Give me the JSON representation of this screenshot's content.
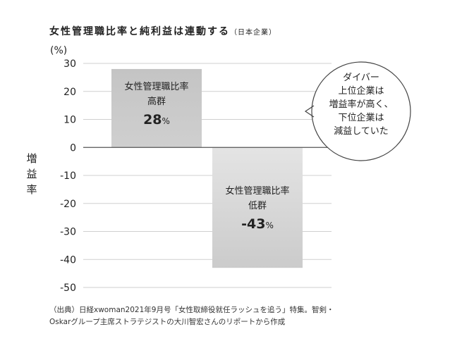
{
  "title": "女性管理職比率と純利益は連動する",
  "subtitle": "（日本企業）",
  "unit_label": "(%)",
  "ylabel": "増益率",
  "chart_data": {
    "type": "bar",
    "title": "女性管理職比率と純利益は連動する",
    "xlabel": "",
    "ylabel": "増益率",
    "ylim": [
      -50,
      30
    ],
    "yticks": [
      30,
      20,
      10,
      0,
      -10,
      -20,
      -30,
      -40,
      -50
    ],
    "ytick_labels": [
      "30",
      "20",
      "10",
      "0",
      "-10",
      "-20",
      "-30",
      "-40",
      "-50"
    ],
    "categories": [
      "女性管理職比率 高群",
      "女性管理職比率 低群"
    ],
    "values": [
      28,
      -43
    ],
    "bar_colors": [
      "#c8c8c8",
      "#d8d8d8"
    ],
    "labels": [
      {
        "line1": "女性管理職比率",
        "line2": "高群",
        "value": "28",
        "unit": "%"
      },
      {
        "line1": "女性管理職比率",
        "line2": "低群",
        "value": "-43",
        "unit": "%"
      }
    ],
    "annotation": [
      "ダイバー",
      "上位企業は",
      "増益率が高く、",
      "下位企業は",
      "減益していた"
    ]
  },
  "source_note": "（出典）日経xwoman2021年9月号「女性取締役就任ラッシュを追う」特集。智剣・Oskarグループ主席ストラテジストの大川智宏さんのリポートから作成"
}
